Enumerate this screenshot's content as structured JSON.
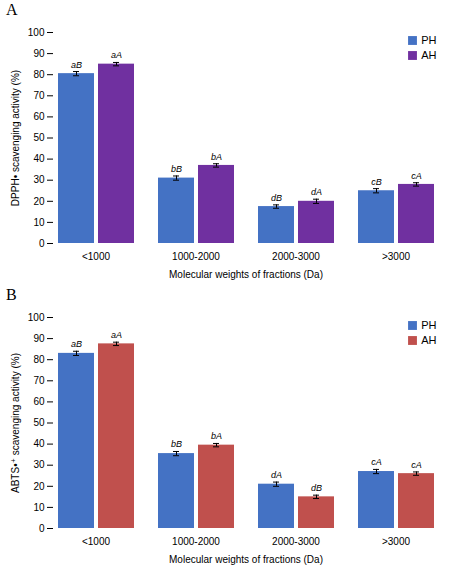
{
  "chart_data": [
    {
      "type": "bar",
      "title": "A",
      "categories": [
        "<1000",
        "1000-2000",
        "2000-3000",
        ">3000"
      ],
      "xlabel": "Molecular weights of fractions (Da)",
      "ylabel": "DPPH• scavenging activity (%)",
      "series": [
        {
          "name": "PH",
          "color": "#4472C4",
          "values": [
            80.5,
            31.0,
            17.5,
            25.0
          ],
          "errors": [
            1.0,
            1.0,
            0.8,
            1.0
          ],
          "annotations": [
            "aB",
            "bB",
            "dB",
            "cB"
          ]
        },
        {
          "name": "AH",
          "color": "#7030A0",
          "values": [
            85.0,
            37.0,
            20.0,
            28.0
          ],
          "errors": [
            0.8,
            0.8,
            1.0,
            0.8
          ],
          "annotations": [
            "aA",
            "bA",
            "dA",
            "cA"
          ]
        }
      ],
      "ylim": [
        0,
        100
      ],
      "yticks": [
        0,
        10,
        20,
        30,
        40,
        50,
        60,
        70,
        80,
        90,
        100
      ],
      "legend": "upper right"
    },
    {
      "type": "bar",
      "title": "B",
      "categories": [
        "<1000",
        "1000-2000",
        "2000-3000",
        ">3000"
      ],
      "xlabel": "Molecular weights of fractions (Da)",
      "ylabel": "ABTS•⁺ scavenging activity (%)",
      "series": [
        {
          "name": "PH",
          "color": "#4472C4",
          "values": [
            83.0,
            35.5,
            21.0,
            27.0
          ],
          "errors": [
            1.0,
            1.0,
            1.0,
            1.0
          ],
          "annotations": [
            "aB",
            "bB",
            "dA",
            "cA"
          ]
        },
        {
          "name": "AH",
          "color": "#C0504D",
          "values": [
            87.5,
            39.5,
            15.0,
            26.0
          ],
          "errors": [
            0.8,
            0.8,
            0.8,
            0.8
          ],
          "annotations": [
            "aA",
            "bA",
            "dB",
            "cA"
          ]
        }
      ],
      "ylim": [
        0,
        100
      ],
      "yticks": [
        0,
        10,
        20,
        30,
        40,
        50,
        60,
        70,
        80,
        90,
        100
      ],
      "legend": "upper right"
    }
  ]
}
